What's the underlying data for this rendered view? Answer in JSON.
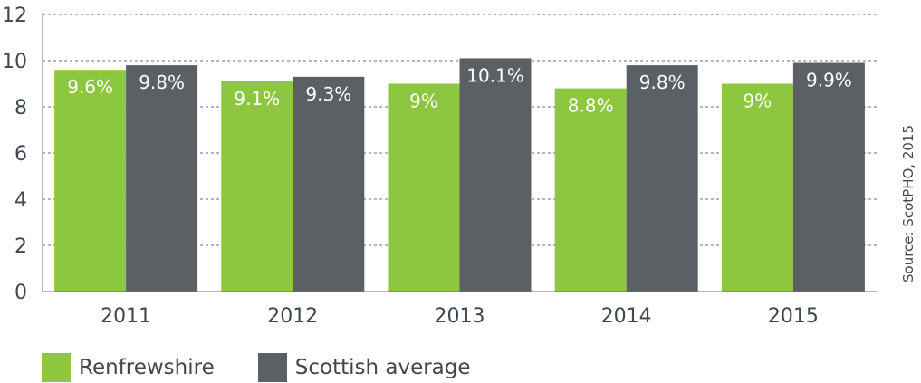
{
  "chart_data": {
    "type": "bar",
    "categories": [
      "2011",
      "2012",
      "2013",
      "2014",
      "2015"
    ],
    "series": [
      {
        "name": "Renfrewshire",
        "values": [
          9.6,
          9.1,
          9.0,
          8.8,
          9.0
        ],
        "labels": [
          "9.6%",
          "9.1%",
          "9%",
          "8.8%",
          "9%"
        ],
        "color": "#8dc63f"
      },
      {
        "name": "Scottish average",
        "values": [
          9.8,
          9.3,
          10.1,
          9.8,
          9.9
        ],
        "labels": [
          "9.8%",
          "9.3%",
          "10.1%",
          "9.8%",
          "9.9%"
        ],
        "color": "#5b6064"
      }
    ],
    "yticks": [
      0,
      2,
      4,
      6,
      8,
      10,
      12
    ],
    "ylim": [
      0,
      12
    ],
    "grid": "dashed horizontal",
    "legend": "bottom-left",
    "source": "Source: ScotPHO, 2015"
  }
}
